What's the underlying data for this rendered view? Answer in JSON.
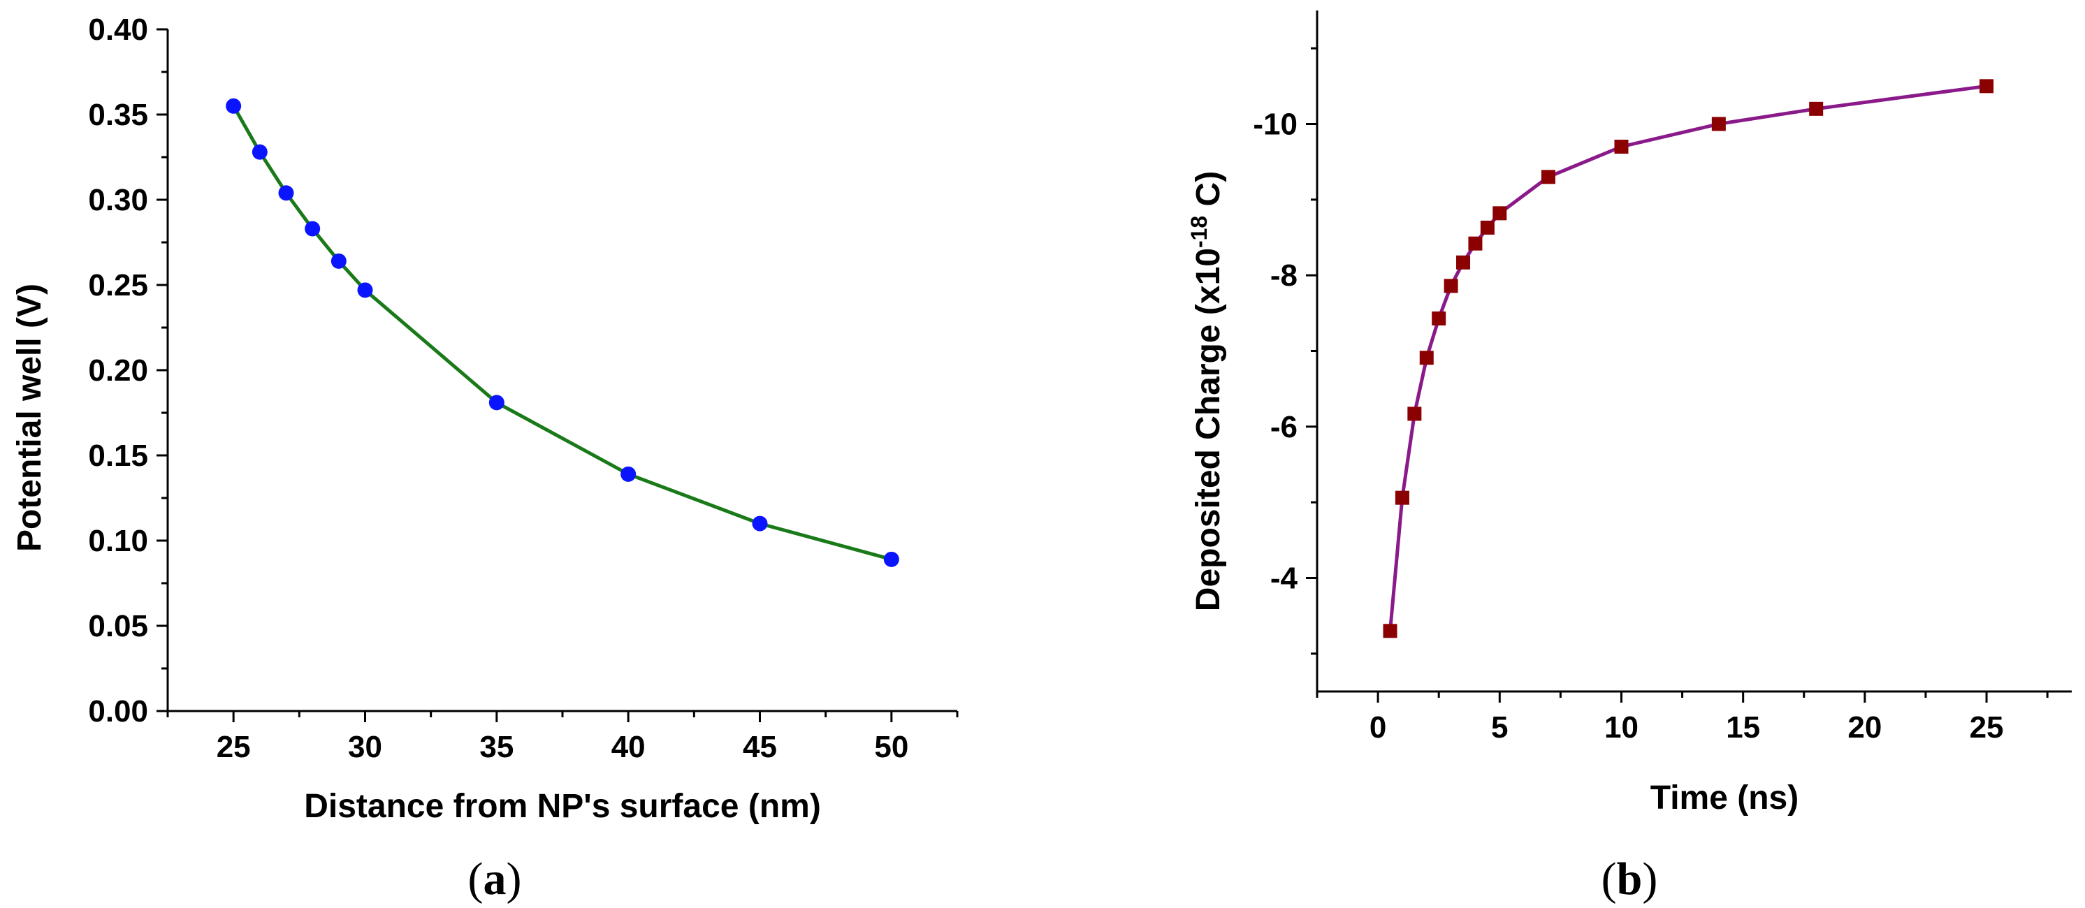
{
  "chart_data": [
    {
      "type": "line",
      "panel_label": {
        "open": "(",
        "letter": "a",
        "close": ")"
      },
      "title": "",
      "xlabel": "Distance from NP's surface (nm)",
      "ylabel": "Potential well (V)",
      "xlim": [
        22.5,
        52.5
      ],
      "ylim": [
        0.0,
        0.4
      ],
      "xticks": [
        25,
        30,
        35,
        40,
        45,
        50
      ],
      "xtick_labels": [
        "25",
        "30",
        "35",
        "40",
        "45",
        "50"
      ],
      "yticks": [
        0.0,
        0.05,
        0.1,
        0.15,
        0.2,
        0.25,
        0.3,
        0.35,
        0.4
      ],
      "ytick_labels": [
        "0.00",
        "0.05",
        "0.10",
        "0.15",
        "0.20",
        "0.25",
        "0.30",
        "0.35",
        "0.40"
      ],
      "series": [
        {
          "name": "Potential well",
          "line_color": "#1a7a1a",
          "marker_color": "#0a14ff",
          "marker": "circle",
          "x": [
            25,
            26,
            27,
            28,
            29,
            30,
            35,
            40,
            45,
            50
          ],
          "y": [
            0.355,
            0.328,
            0.304,
            0.283,
            0.264,
            0.247,
            0.181,
            0.139,
            0.11,
            0.089
          ]
        }
      ]
    },
    {
      "type": "line",
      "panel_label": {
        "open": "(",
        "letter": "b",
        "close": ")"
      },
      "title": "",
      "xlabel": "Time (ns)",
      "ylabel_main": "Deposited Charge (x10",
      "ylabel_sup": "-18",
      "ylabel_end": " C)",
      "xlim": [
        -2.5,
        28.5
      ],
      "ylim": [
        -2.5,
        -11.5
      ],
      "xticks": [
        0,
        5,
        10,
        15,
        20,
        25
      ],
      "xtick_labels": [
        "0",
        "5",
        "10",
        "15",
        "20",
        "25"
      ],
      "yticks": [
        -4,
        -6,
        -8,
        -10
      ],
      "ytick_labels": [
        "-4",
        "-6",
        "-8",
        "-10"
      ],
      "series": [
        {
          "name": "Deposited Charge",
          "line_color": "#8a1a8a",
          "marker_color": "#8b0000",
          "marker": "square",
          "x": [
            0.5,
            1.0,
            1.5,
            2.0,
            2.5,
            3.0,
            3.5,
            4.0,
            4.5,
            5.0,
            7.0,
            10.0,
            14.0,
            18.0,
            25.0
          ],
          "y": [
            -3.3,
            -5.06,
            -6.17,
            -6.91,
            -7.43,
            -7.86,
            -8.17,
            -8.42,
            -8.63,
            -8.82,
            -9.3,
            -9.7,
            -10.0,
            -10.2,
            -10.5
          ]
        }
      ]
    }
  ]
}
